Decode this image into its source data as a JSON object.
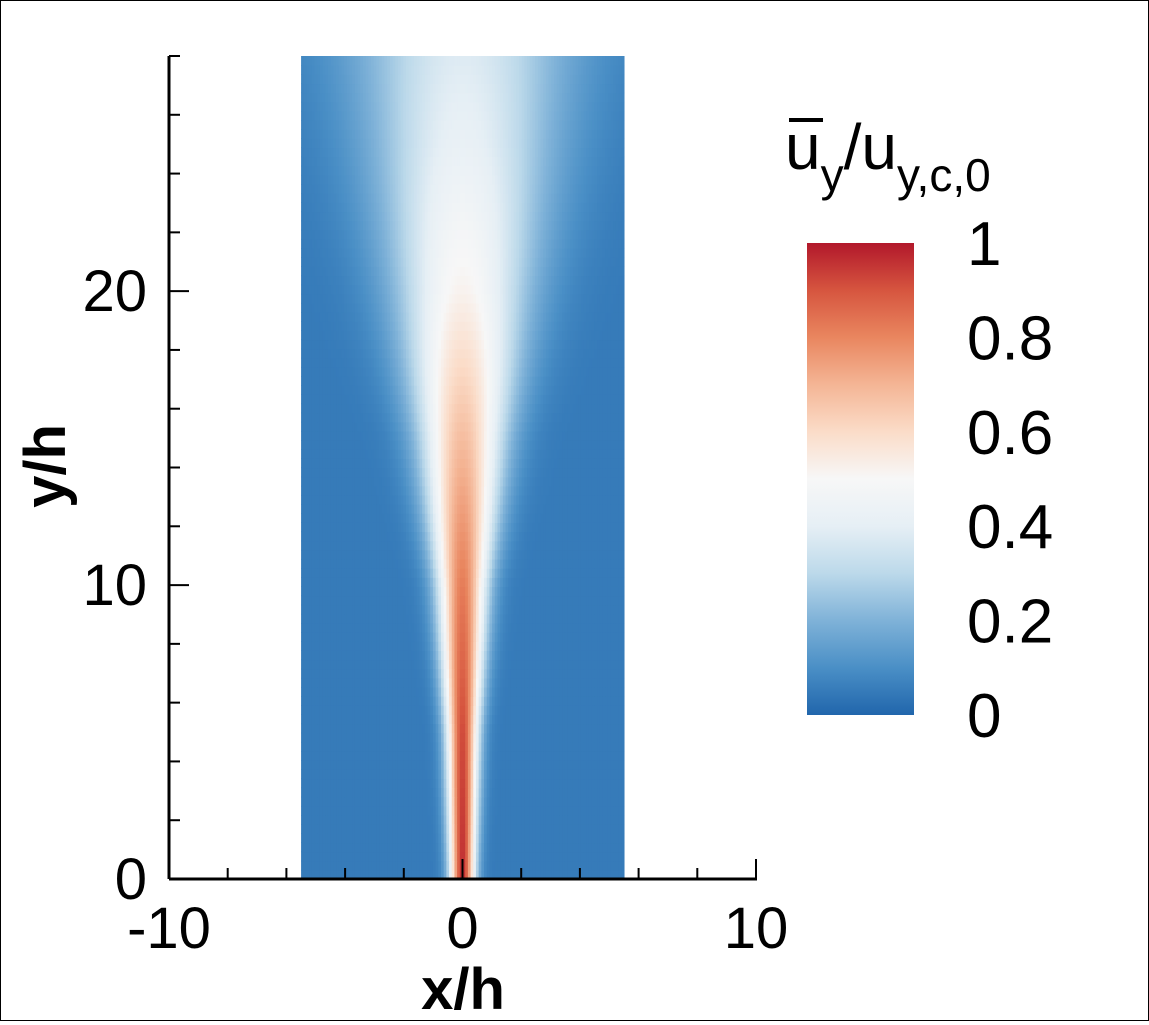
{
  "chart_data": {
    "type": "heatmap",
    "xlabel": "x/h",
    "ylabel": "y/h",
    "xlim": [
      -10,
      10
    ],
    "ylim": [
      0,
      28
    ],
    "x_ticks": [
      "-10",
      "0",
      "10"
    ],
    "y_ticks": [
      "0",
      "10",
      "20"
    ],
    "x_tick_values": [
      -10,
      0,
      10
    ],
    "y_tick_values": [
      0,
      10,
      20
    ],
    "data_extent": {
      "x": [
        -5.5,
        5.5
      ],
      "y": [
        0,
        28
      ]
    },
    "field": {
      "description_keys": [
        "y",
        "centerline_value",
        "half_width"
      ],
      "profile": [
        {
          "y": 0,
          "centerline_value": 0.97,
          "half_width": 0.35
        },
        {
          "y": 5,
          "centerline_value": 0.92,
          "half_width": 0.45
        },
        {
          "y": 10,
          "centerline_value": 0.82,
          "half_width": 0.7
        },
        {
          "y": 15,
          "centerline_value": 0.68,
          "half_width": 1.2
        },
        {
          "y": 20,
          "centerline_value": 0.52,
          "half_width": 1.9
        },
        {
          "y": 25,
          "centerline_value": 0.42,
          "half_width": 2.6
        },
        {
          "y": 28,
          "centerline_value": 0.38,
          "half_width": 3.0
        }
      ],
      "background_value": 0.05
    },
    "colorbar": {
      "title_main": "u",
      "title_sub": "y",
      "title_slash": "/u",
      "title_sub2": "y,c,0",
      "range": [
        0,
        1
      ],
      "ticks": [
        "1",
        "0.8",
        "0.6",
        "0.4",
        "0.2",
        "0"
      ],
      "tick_values": [
        1,
        0.8,
        0.6,
        0.4,
        0.2,
        0
      ],
      "colormap": [
        {
          "v": 0.0,
          "color": "#2166ac"
        },
        {
          "v": 0.1,
          "color": "#4a8fc6"
        },
        {
          "v": 0.2,
          "color": "#7fb2d8"
        },
        {
          "v": 0.3,
          "color": "#bcd9ea"
        },
        {
          "v": 0.4,
          "color": "#e6eff5"
        },
        {
          "v": 0.5,
          "color": "#f7f7f7"
        },
        {
          "v": 0.6,
          "color": "#fbdcc8"
        },
        {
          "v": 0.7,
          "color": "#f4b595"
        },
        {
          "v": 0.8,
          "color": "#e9865f"
        },
        {
          "v": 0.9,
          "color": "#d6553f"
        },
        {
          "v": 1.0,
          "color": "#b2182b"
        }
      ]
    },
    "grid": false
  }
}
